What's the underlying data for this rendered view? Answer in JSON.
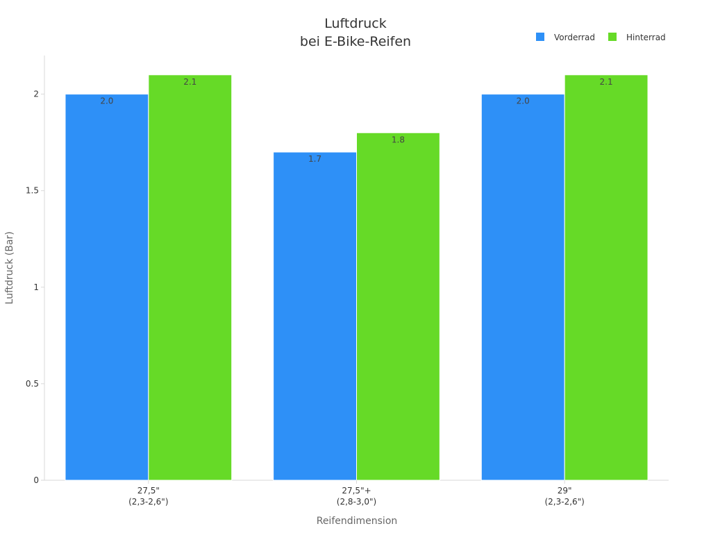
{
  "chart_data": {
    "type": "bar",
    "title_lines": [
      "Luftdruck",
      "bei E-Bike-Reifen"
    ],
    "xlabel": "Reifendimension",
    "ylabel": "Luftdruck (Bar)",
    "categories": [
      [
        "27,5\"",
        "(2,3-2,6\")"
      ],
      [
        "27,5\"+",
        "(2,8-3,0\")"
      ],
      [
        "29\"",
        "(2,3-2,6\")"
      ]
    ],
    "series": [
      {
        "name": "Vorderrad",
        "color": "#2e90f7",
        "values": [
          2.0,
          1.7,
          2.0
        ],
        "labels": [
          "2.0",
          "1.7",
          "2.0"
        ]
      },
      {
        "name": "Hinterrad",
        "color": "#66da27",
        "values": [
          2.1,
          1.8,
          2.1
        ],
        "labels": [
          "2.1",
          "1.8",
          "2.1"
        ]
      }
    ],
    "ylim": [
      0,
      2.2
    ],
    "yticks": [
      0,
      0.5,
      1,
      1.5,
      2
    ],
    "ytick_labels": [
      "0",
      "0.5",
      "1",
      "1.5",
      "2"
    ],
    "grid": false,
    "legend_position": "top-right"
  }
}
